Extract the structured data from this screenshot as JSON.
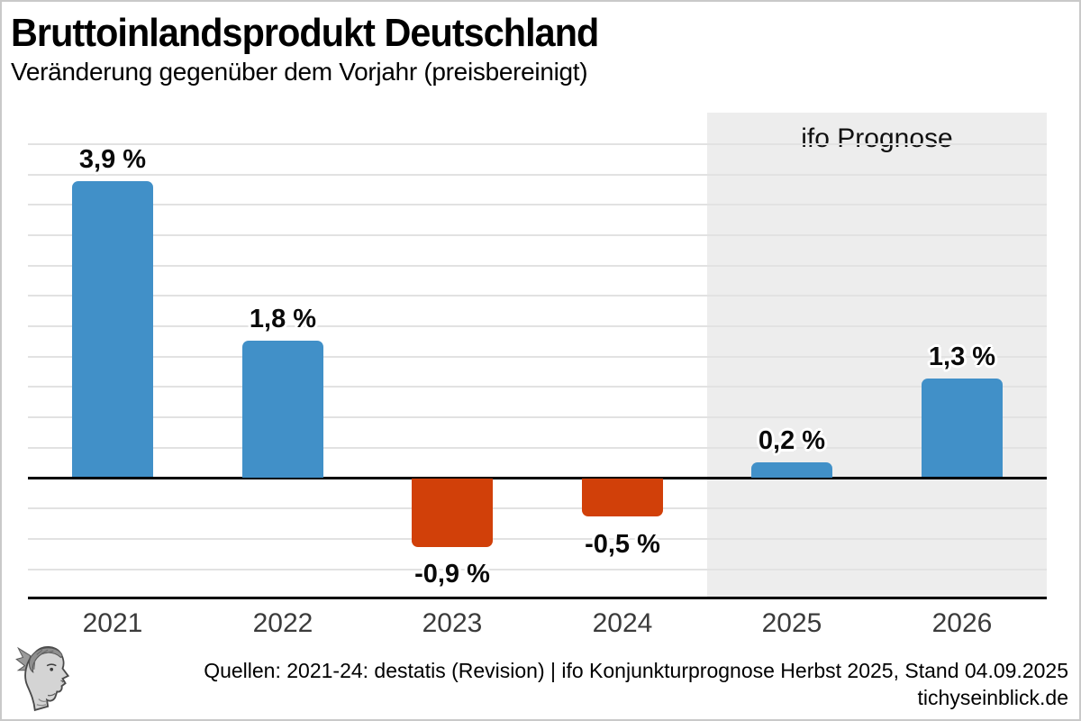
{
  "header": {
    "title": "Bruttoinlandsprodukt Deutschland",
    "subtitle": "Veränderung gegenüber dem Vorjahr (preisbereinigt)"
  },
  "chart_data": {
    "type": "bar",
    "categories": [
      "2021",
      "2022",
      "2023",
      "2024",
      "2025",
      "2026"
    ],
    "values": [
      3.9,
      1.8,
      -0.9,
      -0.5,
      0.2,
      1.3
    ],
    "value_labels": [
      "3,9 %",
      "1,8 %",
      "-0,9 %",
      "-0,5 %",
      "0,2 %",
      "1,3 %"
    ],
    "forecast_categories": [
      "2025",
      "2026"
    ],
    "forecast_label": "ifo Prognose",
    "ylim": [
      -1.6,
      4.8
    ],
    "grid_step": 0.4,
    "grid": "on",
    "legend": "none",
    "xlabel": "",
    "ylabel": "",
    "colors": {
      "positive": "#4190c8",
      "negative": "#d14009",
      "forecast_band": "#ededed",
      "gridline": "#e2e2e2",
      "axis": "#000000"
    }
  },
  "footer": {
    "sources_line": "Quellen: 2021-24: destatis (Revision) | ifo Konjunkturprognose Herbst 2025, Stand 04.09.2025",
    "site": "tichyseinblick.de",
    "logo": "tichys-einblick-classical-head-logo"
  }
}
